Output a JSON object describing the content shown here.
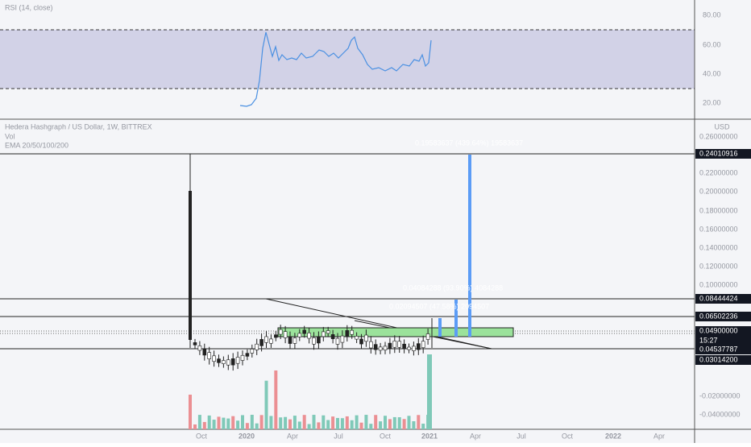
{
  "rsi_pane": {
    "label": "RSI (14, close)",
    "axis_labels": [
      "80.00",
      "60.00",
      "40.00",
      "20.00"
    ]
  },
  "main_pane": {
    "symbol": "Hedera Hashgraph / US Dollar, 1W, BITTREX",
    "vol": "Vol",
    "ema": "EMA 20/50/100/200",
    "currency": "USD",
    "axis_labels": [
      "0.26000000",
      "0.22000000",
      "0.20000000",
      "0.18000000",
      "0.16000000",
      "0.14000000",
      "0.12000000",
      "0.10000000",
      "-0.02000000",
      "-0.04000000"
    ],
    "price_boxes": [
      "0.24010916",
      "0.08444424",
      "0.06502236",
      "0.04900000",
      "0.04537787",
      "0.03014200"
    ],
    "countdown": "15:27",
    "annotations": [
      "0.19583637 (439.64%) 19583637",
      "0.04084288 (93.90%) 4084288",
      "0.02094507 (47.58%) 2094507"
    ]
  },
  "time_axis": [
    "Oct",
    "2020",
    "Apr",
    "Jul",
    "Oct",
    "2021",
    "Apr",
    "Jul",
    "Oct",
    "2022",
    "Apr"
  ]
}
